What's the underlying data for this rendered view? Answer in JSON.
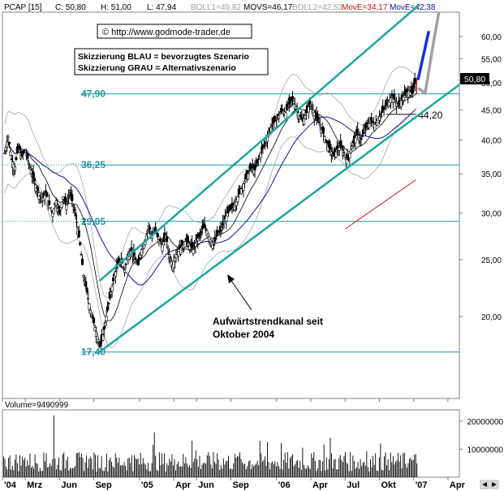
{
  "header": {
    "symbol": "PCAP [15]",
    "close": "C: 50,80",
    "high": "H: 51,00",
    "low": "L: 47,94",
    "boll1": "BOLL1=49,82",
    "movs": "MOVS=46,17",
    "boll2": "BOLL2=42,53",
    "move1": "MovE=34,17",
    "move2": "MovE=42,38"
  },
  "copyright": "© http://www.godmode-trader.de",
  "legend": {
    "blue": "Skizzierung BLAU = bevorzugtes Szenario",
    "grey": "Skizzierung GRAU = Alternativszenario"
  },
  "annotation": {
    "line1": "Aufwärtstrendkanal seit",
    "line2": "Oktober 2004"
  },
  "volume_label": "Volume=9490999",
  "last_price": "50,80",
  "colors": {
    "channel": "#1ba6a0",
    "levels": "#1a9a9a",
    "move_fast": "#1010a0",
    "move_slow": "#cc1010",
    "scenario_blue": "#1030e0",
    "scenario_grey": "#a0a0a0",
    "bollinger": "#a8a8a8"
  },
  "chart_data": {
    "type": "candlestick",
    "y_scale": "log",
    "ylim": [
      14.5,
      66
    ],
    "yticks": [
      "60,00",
      "55,00",
      "50,00",
      "45,00",
      "40,00",
      "35,00",
      "30,00",
      "25,00",
      "20,00"
    ],
    "ytick_values": [
      60,
      55,
      50,
      45,
      40,
      35,
      30,
      25,
      20
    ],
    "xticks": [
      "'04",
      "Mrz",
      "Jun",
      "Sep",
      "'05",
      "Apr",
      "Jun",
      "Sep",
      "'06",
      "Apr",
      "Jul",
      "Okt",
      "'07",
      "Apr"
    ],
    "xtick_months": [
      0,
      2,
      5,
      8,
      12,
      15,
      17,
      20,
      24,
      27,
      30,
      33,
      36,
      39
    ],
    "xlim_months": [
      0,
      40
    ],
    "levels": [
      {
        "value": 47.9,
        "label": "47,90"
      },
      {
        "value": 36.25,
        "label": "36,25"
      },
      {
        "value": 29.05,
        "label": "29,05"
      },
      {
        "value": 17.4,
        "label": "17,40"
      }
    ],
    "level_44": {
      "value": 44.2,
      "label": "44,20"
    },
    "channel": {
      "lower": [
        [
          8.5,
          17.4
        ],
        [
          36.5,
          44.2
        ]
      ],
      "upper": [
        [
          8.5,
          23.0
        ],
        [
          36.5,
          68.0
        ]
      ]
    },
    "closes": [
      [
        0.2,
        38.0
      ],
      [
        0.5,
        40.5
      ],
      [
        0.8,
        37.0
      ],
      [
        1.1,
        36.0
      ],
      [
        1.4,
        39.0
      ],
      [
        1.7,
        37.5
      ],
      [
        2.0,
        38.5
      ],
      [
        2.3,
        36.5
      ],
      [
        2.6,
        35.0
      ],
      [
        2.9,
        33.5
      ],
      [
        3.2,
        32.5
      ],
      [
        3.5,
        31.5
      ],
      [
        3.8,
        32.5
      ],
      [
        4.1,
        31.0
      ],
      [
        4.4,
        30.0
      ],
      [
        4.7,
        31.5
      ],
      [
        5.0,
        30.0
      ],
      [
        5.3,
        32.0
      ],
      [
        5.6,
        31.0
      ],
      [
        5.9,
        32.5
      ],
      [
        6.2,
        31.0
      ],
      [
        6.5,
        29.0
      ],
      [
        6.8,
        26.5
      ],
      [
        7.1,
        23.5
      ],
      [
        7.4,
        22.0
      ],
      [
        7.7,
        20.5
      ],
      [
        8.0,
        19.5
      ],
      [
        8.3,
        18.5
      ],
      [
        8.6,
        17.8
      ],
      [
        8.9,
        19.0
      ],
      [
        9.2,
        20.5
      ],
      [
        9.5,
        22.0
      ],
      [
        9.8,
        23.5
      ],
      [
        10.1,
        24.5
      ],
      [
        10.4,
        25.0
      ],
      [
        10.7,
        24.0
      ],
      [
        11.0,
        25.5
      ],
      [
        11.3,
        26.0
      ],
      [
        11.6,
        25.0
      ],
      [
        11.9,
        24.5
      ],
      [
        12.2,
        26.0
      ],
      [
        12.5,
        27.0
      ],
      [
        12.8,
        28.5
      ],
      [
        13.1,
        27.5
      ],
      [
        13.4,
        28.0
      ],
      [
        13.7,
        27.0
      ],
      [
        14.0,
        26.5
      ],
      [
        14.3,
        27.5
      ],
      [
        14.6,
        25.5
      ],
      [
        14.9,
        24.5
      ],
      [
        15.2,
        25.5
      ],
      [
        15.5,
        26.0
      ],
      [
        15.8,
        26.5
      ],
      [
        16.1,
        27.0
      ],
      [
        16.4,
        26.5
      ],
      [
        16.7,
        26.0
      ],
      [
        17.0,
        27.0
      ],
      [
        17.3,
        27.5
      ],
      [
        17.6,
        28.5
      ],
      [
        17.9,
        28.0
      ],
      [
        18.2,
        27.0
      ],
      [
        18.5,
        26.5
      ],
      [
        18.8,
        27.5
      ],
      [
        19.1,
        28.0
      ],
      [
        19.4,
        29.0
      ],
      [
        19.7,
        30.0
      ],
      [
        20.0,
        30.5
      ],
      [
        20.3,
        31.0
      ],
      [
        20.6,
        32.0
      ],
      [
        20.9,
        33.0
      ],
      [
        21.2,
        34.0
      ],
      [
        21.5,
        35.0
      ],
      [
        21.8,
        36.0
      ],
      [
        22.1,
        35.5
      ],
      [
        22.4,
        37.0
      ],
      [
        22.7,
        38.5
      ],
      [
        23.0,
        39.5
      ],
      [
        23.3,
        41.0
      ],
      [
        23.6,
        42.5
      ],
      [
        23.9,
        43.0
      ],
      [
        24.2,
        44.0
      ],
      [
        24.5,
        45.0
      ],
      [
        24.8,
        44.5
      ],
      [
        25.1,
        46.0
      ],
      [
        25.4,
        47.0
      ],
      [
        25.7,
        45.5
      ],
      [
        26.0,
        44.0
      ],
      [
        26.3,
        43.0
      ],
      [
        26.6,
        44.5
      ],
      [
        26.9,
        46.0
      ],
      [
        27.2,
        45.0
      ],
      [
        27.5,
        43.5
      ],
      [
        27.8,
        42.5
      ],
      [
        28.1,
        41.0
      ],
      [
        28.4,
        39.5
      ],
      [
        28.7,
        38.5
      ],
      [
        29.0,
        37.5
      ],
      [
        29.3,
        38.5
      ],
      [
        29.6,
        39.0
      ],
      [
        29.9,
        38.0
      ],
      [
        30.2,
        37.0
      ],
      [
        30.5,
        38.5
      ],
      [
        30.8,
        40.0
      ],
      [
        31.1,
        41.0
      ],
      [
        31.4,
        40.0
      ],
      [
        31.7,
        41.5
      ],
      [
        32.0,
        42.5
      ],
      [
        32.3,
        43.0
      ],
      [
        32.6,
        42.5
      ],
      [
        32.9,
        43.5
      ],
      [
        33.2,
        44.5
      ],
      [
        33.5,
        45.5
      ],
      [
        33.8,
        46.5
      ],
      [
        34.1,
        47.5
      ],
      [
        34.4,
        46.5
      ],
      [
        34.7,
        46.0
      ],
      [
        35.0,
        47.0
      ],
      [
        35.3,
        48.0
      ],
      [
        35.6,
        48.5
      ],
      [
        35.9,
        48.0
      ],
      [
        36.2,
        50.8
      ]
    ],
    "scenario_blue": [
      [
        36.4,
        50.8
      ],
      [
        37.3,
        61.0
      ]
    ],
    "scenario_grey": [
      [
        36.4,
        49.0
      ],
      [
        37.0,
        48.0
      ],
      [
        37.7,
        58.0
      ],
      [
        38.2,
        66.0
      ]
    ],
    "volume_yticks": [
      "20000000",
      "10000000"
    ],
    "volume_ytick_values": [
      20000000,
      10000000
    ],
    "volume_ylim": [
      0,
      24000000
    ]
  }
}
